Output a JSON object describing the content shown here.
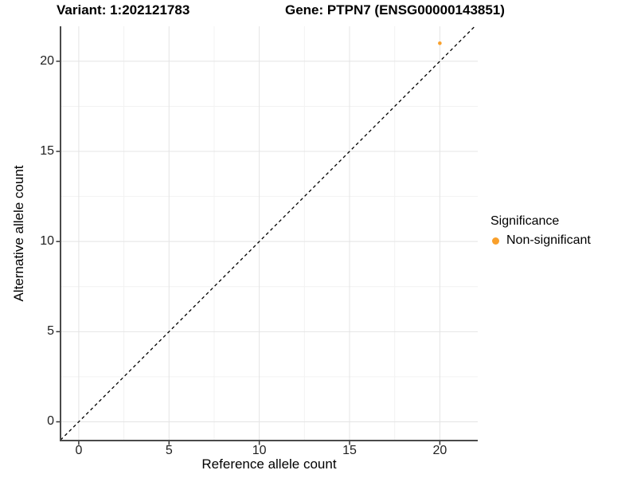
{
  "figure": {
    "title_left": "Variant: 1:202121783",
    "title_right": "Gene: PTPN7 (ENSG00000143851)"
  },
  "chart_data": {
    "type": "scatter",
    "title": "Variant: 1:202121783   Gene: PTPN7 (ENSG00000143851)",
    "xlabel": "Reference allele count",
    "ylabel": "Alternative allele count",
    "xlim": [
      -1.01,
      22.1
    ],
    "ylim": [
      -1.04,
      21.94
    ],
    "x_ticks": [
      0,
      5,
      10,
      15,
      20
    ],
    "y_ticks": [
      0,
      5,
      10,
      15,
      20
    ],
    "minor_x_ticks": [
      2.5,
      7.5,
      12.5,
      17.5
    ],
    "minor_y_ticks": [
      2.5,
      7.5,
      12.5,
      17.5
    ],
    "grid": true,
    "series": [
      {
        "name": "Non-significant",
        "color": "#F9A02B",
        "points": [
          [
            20,
            21
          ]
        ],
        "point_radius": 2.3
      }
    ],
    "reference_line": {
      "type": "identity y=x",
      "style": "dashed",
      "color": "#000000"
    },
    "legend": {
      "title": "Significance",
      "position": "right",
      "entries": [
        {
          "label": "Non-significant",
          "color": "#F9A02B"
        }
      ]
    }
  },
  "colors": {
    "background": "#FFFFFF",
    "grid_major": "#E4E4E4",
    "grid_minor": "#F2F2F2",
    "axis_line": "#4A4A4A",
    "tick_mark": "#333333",
    "tick_text": "#1F1F1F",
    "point_orange": "#F9A02B"
  }
}
